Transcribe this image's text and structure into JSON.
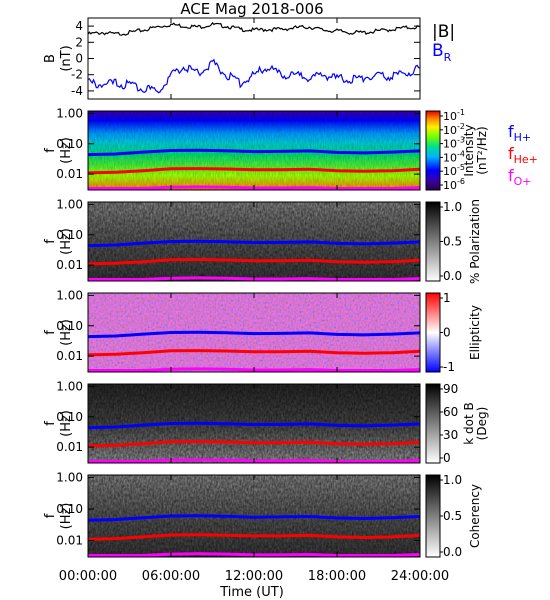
{
  "title": "ACE Mag 2018-006",
  "colors": {
    "total_field": "#000000",
    "radial_field": "#0000ff",
    "f_h": "#0000ff",
    "f_he": "#ff0000",
    "f_o": "#ff00ff"
  },
  "chart_data": [
    {
      "type": "line",
      "panel": "magnetic-field",
      "ylabel": [
        "B",
        "(nT)"
      ],
      "ylim": [
        -5,
        5
      ],
      "yticks": [
        "4",
        "2",
        "0",
        "-2",
        "-4"
      ],
      "ytick_values": [
        4,
        2,
        0,
        -2,
        -4
      ],
      "xlim_hours": [
        0,
        24
      ],
      "series": [
        {
          "name": "|B|",
          "x_hours": [
            0,
            1,
            2,
            3,
            4,
            5,
            6,
            7,
            8,
            9,
            10,
            11,
            12,
            13,
            14,
            15,
            16,
            17,
            18,
            19,
            20,
            21,
            22,
            23,
            24
          ],
          "values": [
            3.0,
            3.2,
            3.0,
            3.2,
            3.5,
            3.9,
            4.2,
            4.0,
            3.9,
            4.2,
            4.0,
            3.6,
            3.5,
            3.6,
            3.6,
            3.8,
            3.9,
            3.5,
            3.4,
            3.2,
            3.2,
            3.4,
            3.6,
            3.8,
            3.9
          ]
        },
        {
          "name": "B",
          "subscript": "R",
          "x_hours": [
            0,
            1,
            2,
            3,
            4,
            5,
            6,
            7,
            8,
            9,
            10,
            11,
            12,
            13,
            14,
            15,
            16,
            17,
            18,
            19,
            20,
            21,
            22,
            23,
            24
          ],
          "values": [
            -3.0,
            -3.2,
            -3.1,
            -3.3,
            -3.6,
            -4.2,
            -2.0,
            -1.0,
            -1.8,
            -0.5,
            -2.0,
            -3.0,
            -2.0,
            -1.0,
            -2.2,
            -2.0,
            -2.4,
            -2.0,
            -2.5,
            -2.6,
            -2.3,
            -2.2,
            -2.2,
            -1.8,
            -1.2
          ]
        }
      ]
    },
    {
      "type": "heatmap",
      "panel": "intensity",
      "ylabel": [
        "f",
        "(Hz)"
      ],
      "yscale": "log",
      "ylim": [
        0.003,
        1.2
      ],
      "yticks": [
        "1.00",
        "0.10",
        "0.01"
      ],
      "colorbar": {
        "label": [
          "Intensity",
          "(nT²/Hz)"
        ],
        "scale": "log",
        "ticks": [
          {
            "base": "10",
            "exp": "-1"
          },
          {
            "base": "10",
            "exp": "-2"
          },
          {
            "base": "10",
            "exp": "-3"
          },
          {
            "base": "10",
            "exp": "-4"
          },
          {
            "base": "10",
            "exp": "-5"
          },
          {
            "base": "10",
            "exp": "-6"
          }
        ]
      },
      "legend": [
        {
          "main": "f",
          "sub": "H+",
          "color": "#0000ff"
        },
        {
          "main": "f",
          "sub": "He+",
          "color": "#ff0000"
        },
        {
          "main": "f",
          "sub": "O+",
          "color": "#ff00ff"
        }
      ]
    },
    {
      "type": "heatmap",
      "panel": "polarization",
      "ylabel": [
        "f",
        "(Hz)"
      ],
      "yscale": "log",
      "ylim": [
        0.003,
        1.2
      ],
      "yticks": [
        "1.00",
        "0.10",
        "0.01"
      ],
      "colorbar": {
        "label": [
          "% Polarization"
        ],
        "ticks": [
          "1.0",
          "0.5",
          "0.0"
        ]
      }
    },
    {
      "type": "heatmap",
      "panel": "ellipticity",
      "ylabel": [
        "f",
        "(Hz)"
      ],
      "yscale": "log",
      "ylim": [
        0.003,
        1.2
      ],
      "yticks": [
        "1.00",
        "0.10",
        "0.01"
      ],
      "colorbar": {
        "label": [
          "Ellipticity"
        ],
        "ticks": [
          "1",
          "0",
          "-1"
        ]
      }
    },
    {
      "type": "heatmap",
      "panel": "k-dot-b",
      "ylabel": [
        "f",
        "(Hz)"
      ],
      "yscale": "log",
      "ylim": [
        0.003,
        1.2
      ],
      "yticks": [
        "1.00",
        "0.10",
        "0.01"
      ],
      "colorbar": {
        "label": [
          "k dot B",
          "(Deg)"
        ],
        "ticks": [
          "90",
          "60",
          "30",
          "0"
        ]
      }
    },
    {
      "type": "heatmap",
      "panel": "coherency",
      "ylabel": [
        "f",
        "(Hz)"
      ],
      "yscale": "log",
      "ylim": [
        0.003,
        1.2
      ],
      "yticks": [
        "1.00",
        "0.10",
        "0.01"
      ],
      "colorbar": {
        "label": [
          "Coherency"
        ],
        "ticks": [
          "1.0",
          "0.5",
          "0.0"
        ]
      }
    }
  ],
  "gyrofrequency_lines": {
    "x_hours": [
      0,
      2,
      4,
      6,
      8,
      10,
      12,
      14,
      16,
      18,
      20,
      22,
      24
    ],
    "f_h": [
      0.044,
      0.046,
      0.053,
      0.06,
      0.061,
      0.059,
      0.055,
      0.056,
      0.058,
      0.052,
      0.05,
      0.053,
      0.058
    ],
    "f_he": [
      0.011,
      0.0115,
      0.013,
      0.015,
      0.0152,
      0.0148,
      0.014,
      0.014,
      0.0145,
      0.013,
      0.0125,
      0.013,
      0.0145
    ],
    "f_o": [
      0.0028,
      0.0029,
      0.0033,
      0.0037,
      0.0038,
      0.0037,
      0.0035,
      0.0035,
      0.0036,
      0.0033,
      0.0031,
      0.0033,
      0.0036
    ]
  },
  "x_axis": {
    "ticks": [
      "00:00:00",
      "06:00:00",
      "12:00:00",
      "18:00:00",
      "24:00:00"
    ],
    "tick_hours": [
      0,
      6,
      12,
      18,
      24
    ],
    "label": "Time (UT)"
  }
}
